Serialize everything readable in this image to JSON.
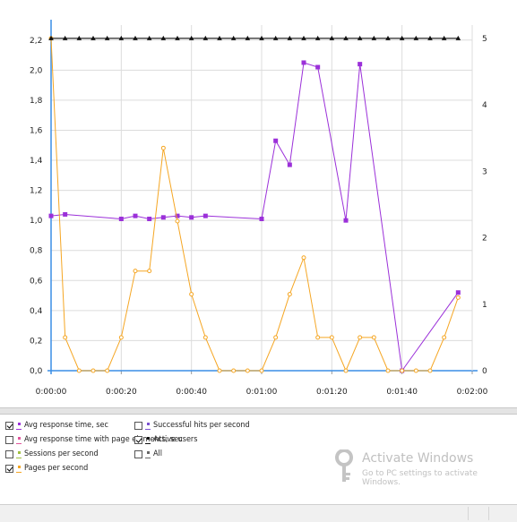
{
  "chart_data": {
    "type": "line",
    "title": "",
    "xlabel": "",
    "ylabel": "",
    "ylim": [
      0,
      2.3
    ],
    "y2lim": [
      0,
      5.2
    ],
    "y_ticks": [
      "0,0",
      "0,2",
      "0,4",
      "0,6",
      "0,8",
      "1,0",
      "1,2",
      "1,4",
      "1,6",
      "1,8",
      "2,0",
      "2,2"
    ],
    "y_tick_values": [
      0,
      0.2,
      0.4,
      0.6,
      0.8,
      1.0,
      1.2,
      1.4,
      1.6,
      1.8,
      2.0,
      2.2
    ],
    "y2_ticks": [
      "0",
      "1",
      "2",
      "3",
      "4",
      "5"
    ],
    "y2_tick_values": [
      0,
      1,
      2,
      3,
      4,
      5
    ],
    "x_ticks": [
      "0:00:00",
      "0:00:20",
      "0:00:40",
      "0:01:00",
      "0:01:20",
      "0:01:40",
      "0:02:00"
    ],
    "x_tick_values": [
      0,
      20,
      40,
      60,
      80,
      100,
      120
    ],
    "xlim": [
      0,
      120
    ],
    "grid": true,
    "legend_position": "bottom",
    "series": [
      {
        "name": "Avg response time, sec",
        "axis": "left",
        "color": "#9b30d9",
        "marker": "square",
        "x": [
          0,
          4,
          20,
          24,
          28,
          32,
          36,
          40,
          44,
          60,
          64,
          68,
          72,
          76,
          84,
          88,
          100,
          116
        ],
        "y": [
          1.03,
          1.04,
          1.01,
          1.03,
          1.01,
          1.02,
          1.03,
          1.02,
          1.03,
          1.01,
          1.53,
          1.37,
          2.05,
          2.02,
          1.0,
          2.04,
          0.0,
          0.52
        ]
      },
      {
        "name": "Pages per second",
        "axis": "right",
        "color": "#f5a623",
        "marker": "circle",
        "x": [
          0,
          4,
          8,
          12,
          16,
          20,
          24,
          28,
          32,
          36,
          40,
          44,
          48,
          52,
          56,
          60,
          64,
          68,
          72,
          76,
          80,
          84,
          88,
          92,
          96,
          100,
          104,
          108,
          112,
          116
        ],
        "y": [
          5,
          0.5,
          0,
          0,
          0,
          0.5,
          1.5,
          1.5,
          3.35,
          2.25,
          1.15,
          0.5,
          0,
          0,
          0,
          0,
          0.5,
          1.15,
          1.7,
          0.5,
          0.5,
          0,
          0.5,
          0.5,
          0,
          0,
          0,
          0,
          0.5,
          1.1
        ]
      },
      {
        "name": "Active users",
        "axis": "right",
        "color": "#111111",
        "marker": "triangle",
        "x": [
          0,
          4,
          8,
          12,
          16,
          20,
          24,
          28,
          32,
          36,
          40,
          44,
          48,
          52,
          56,
          60,
          64,
          68,
          72,
          76,
          80,
          84,
          88,
          92,
          96,
          100,
          104,
          108,
          112,
          116
        ],
        "y": [
          5,
          5,
          5,
          5,
          5,
          5,
          5,
          5,
          5,
          5,
          5,
          5,
          5,
          5,
          5,
          5,
          5,
          5,
          5,
          5,
          5,
          5,
          5,
          5,
          5,
          5,
          5,
          5,
          5,
          5
        ]
      }
    ]
  },
  "legend": {
    "items": [
      {
        "label": "Avg response time, sec",
        "checked": true,
        "color": "#9b30d9"
      },
      {
        "label": "Avg response time with page elements, sec",
        "checked": false,
        "color": "#e0559b"
      },
      {
        "label": "Sessions per second",
        "checked": false,
        "color": "#a0c040"
      },
      {
        "label": "Pages per second",
        "checked": true,
        "color": "#f5a623"
      },
      {
        "label": "Successful hits per second",
        "checked": false,
        "color": "#7a50d0"
      },
      {
        "label": "Active users",
        "checked": true,
        "color": "#111111"
      },
      {
        "label": "All",
        "checked": false,
        "color": "#666666"
      }
    ]
  },
  "watermark": {
    "title": "Activate Windows",
    "subtitle": "Go to PC settings to activate Windows."
  }
}
